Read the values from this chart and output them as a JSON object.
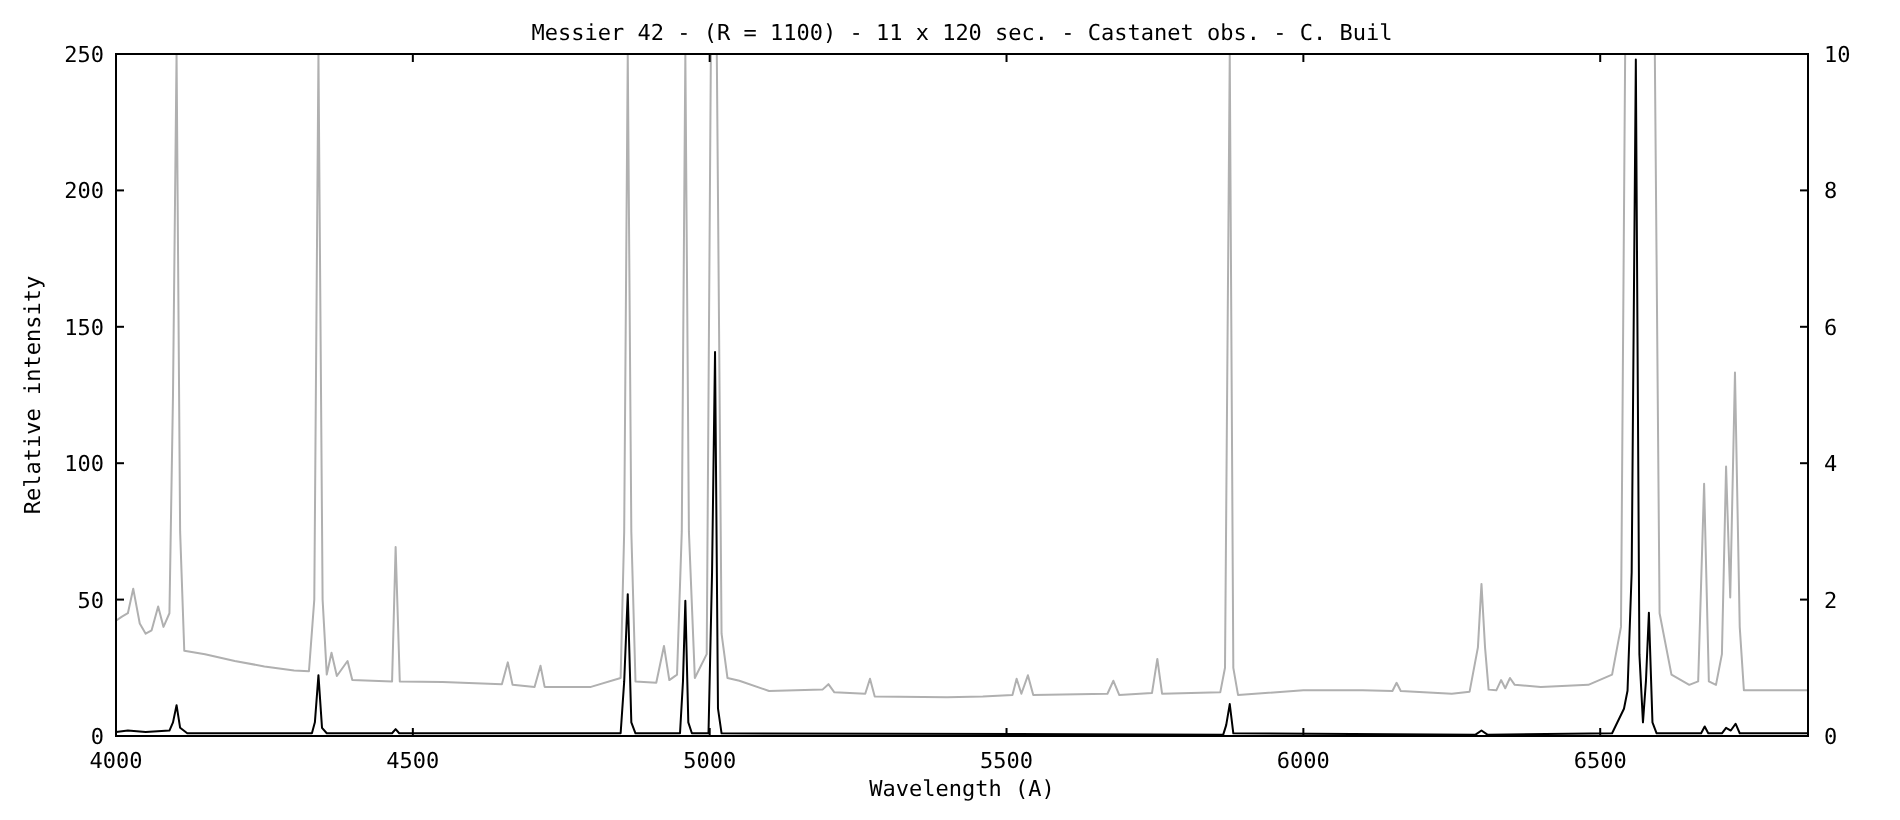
{
  "chart_data": {
    "type": "line",
    "title": "Messier 42 - (R = 1100) - 11 x 120 sec. - Castanet obs. - C. Buil",
    "xlabel": "Wavelength (A)",
    "ylabel": "Relative intensity",
    "xlim": [
      4000,
      6850
    ],
    "xticks": [
      4000,
      4500,
      5000,
      5500,
      6000,
      6500
    ],
    "ylim": [
      0,
      250
    ],
    "yticks": [
      0,
      50,
      100,
      150,
      200,
      250
    ],
    "y2lim": [
      0,
      10
    ],
    "y2ticks": [
      0,
      2,
      4,
      6,
      8,
      10
    ],
    "grid": false,
    "line_style": "solid",
    "series": [
      {
        "color": "#b0b0b0",
        "axis": "y2",
        "x": [
          4000,
          4010,
          4020,
          4029,
          4040,
          4050,
          4060,
          4071,
          4080,
          4090,
          4096,
          4102,
          4108,
          4115,
          4150,
          4200,
          4250,
          4300,
          4325,
          4334,
          4341,
          4348,
          4355,
          4363,
          4372,
          4390,
          4398,
          4465,
          4471,
          4478,
          4550,
          4650,
          4660,
          4668,
          4705,
          4715,
          4722,
          4800,
          4850,
          4856,
          4862,
          4868,
          4875,
          4910,
          4923,
          4932,
          4945,
          4953,
          4959,
          4965,
          4975,
          4995,
          5002,
          5012,
          5020,
          5030,
          5050,
          5100,
          5190,
          5200,
          5210,
          5262,
          5270,
          5278,
          5400,
          5460,
          5510,
          5517,
          5525,
          5536,
          5545,
          5670,
          5680,
          5690,
          5745,
          5754,
          5762,
          5860,
          5868,
          5876,
          5882,
          5890,
          6000,
          6100,
          6150,
          6157,
          6164,
          6250,
          6280,
          6294,
          6300,
          6306,
          6312,
          6325,
          6333,
          6340,
          6348,
          6356,
          6400,
          6480,
          6520,
          6535,
          6542,
          6592,
          6600,
          6620,
          6650,
          6665,
          6675,
          6683,
          6695,
          6705,
          6712,
          6719,
          6727,
          6735,
          6742,
          6800,
          6850
        ],
        "values": [
          1.69,
          1.75,
          1.8,
          2.16,
          1.65,
          1.5,
          1.55,
          1.9,
          1.6,
          1.8,
          5,
          10,
          3,
          1.25,
          1.2,
          1.1,
          1.02,
          0.96,
          0.95,
          2,
          10,
          2,
          0.9,
          1.22,
          0.88,
          1.1,
          0.82,
          0.8,
          2.77,
          0.8,
          0.79,
          0.76,
          1.08,
          0.75,
          0.72,
          1.03,
          0.72,
          0.72,
          0.85,
          3,
          10,
          3,
          0.8,
          0.78,
          1.32,
          0.82,
          0.9,
          3,
          10,
          3,
          0.85,
          1.2,
          10,
          10,
          1.5,
          0.85,
          0.81,
          0.66,
          0.68,
          0.76,
          0.64,
          0.62,
          0.84,
          0.58,
          0.57,
          0.58,
          0.6,
          0.84,
          0.62,
          0.89,
          0.6,
          0.62,
          0.81,
          0.6,
          0.63,
          1.13,
          0.62,
          0.64,
          1,
          10,
          1,
          0.6,
          0.67,
          0.67,
          0.66,
          0.78,
          0.66,
          0.62,
          0.65,
          1.3,
          2.23,
          1.3,
          0.68,
          0.67,
          0.82,
          0.7,
          0.85,
          0.75,
          0.72,
          0.75,
          0.9,
          1.6,
          10,
          10,
          1.8,
          0.9,
          0.75,
          0.8,
          3.7,
          0.8,
          0.75,
          1.2,
          3.95,
          2.03,
          5.33,
          1.6,
          0.67,
          0.67,
          0.67
        ]
      },
      {
        "color": "#000000",
        "axis": "y",
        "x": [
          4000,
          4020,
          4050,
          4090,
          4096,
          4102,
          4108,
          4120,
          4330,
          4335,
          4341,
          4347,
          4355,
          4465,
          4471,
          4477,
          4850,
          4856,
          4862,
          4868,
          4875,
          4950,
          4955,
          4959,
          4964,
          4970,
          4998,
          5004,
          5009,
          5014,
          5020,
          5865,
          5870,
          5876,
          5882,
          6290,
          6300,
          6310,
          6520,
          6540,
          6546,
          6553,
          6560,
          6566,
          6572,
          6577,
          6582,
          6588,
          6595,
          6670,
          6676,
          6682,
          6705,
          6712,
          6720,
          6728,
          6735,
          6850
        ],
        "values": [
          1.5,
          2,
          1.5,
          2,
          5,
          11.3,
          3,
          1,
          1,
          5,
          22.3,
          3,
          1,
          1,
          2.5,
          1,
          1,
          20,
          52,
          5,
          1,
          1,
          20,
          49.6,
          5,
          1,
          1,
          60,
          140.8,
          10,
          1,
          0.5,
          4,
          11.7,
          1,
          0.5,
          2,
          0.5,
          1,
          10,
          16.6,
          60,
          248,
          30,
          5,
          20,
          45.2,
          5,
          1,
          1,
          3.5,
          1,
          1,
          3,
          2,
          4.5,
          1,
          1
        ]
      }
    ]
  }
}
